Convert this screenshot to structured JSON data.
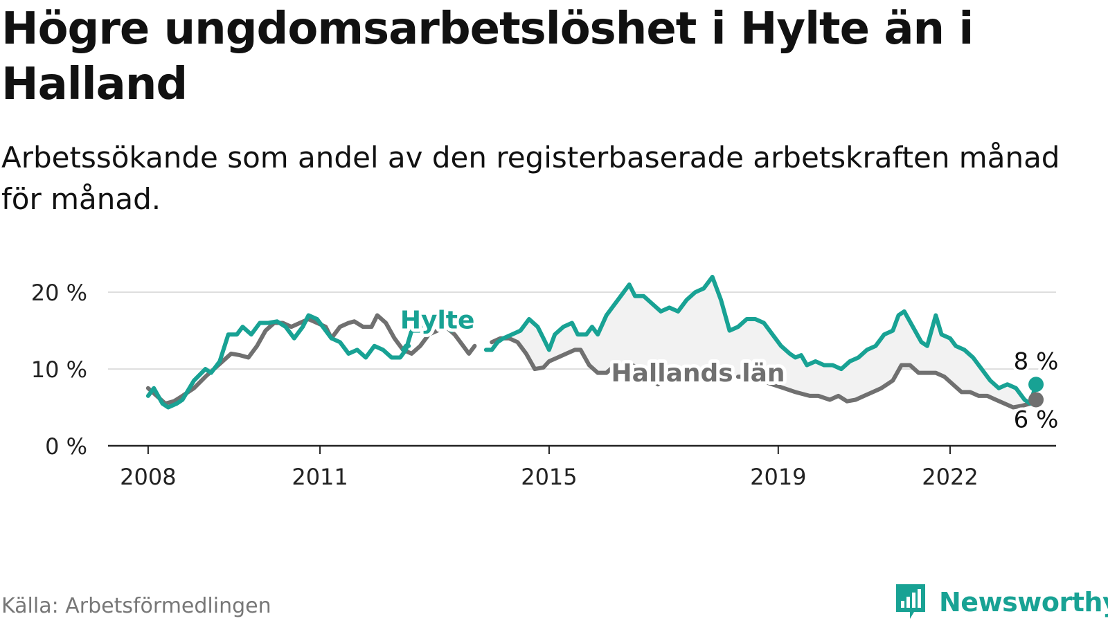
{
  "title": "Högre ungdomsarbetslöshet i Hylte än i Halland",
  "subtitle": "Arbetssökande som andel av den registerbaserade arbetskraften månad för månad.",
  "source": "Källa: Arbetsförmedlingen",
  "brand": "Newsworthy",
  "colors": {
    "hylte": "#18a294",
    "halland": "#707070",
    "grid": "#dddddd",
    "axis": "#222222",
    "fill": "#f2f2f2"
  },
  "chart_data": {
    "type": "line",
    "title": "Högre ungdomsarbetslöshet i Hylte än i Halland",
    "xlabel": "",
    "ylabel": "",
    "ylim": [
      0,
      22
    ],
    "xlim": [
      2007.3,
      2023.85
    ],
    "y_ticks": [
      0,
      10,
      20
    ],
    "y_tick_labels": [
      "0 %",
      "10 %",
      "20 %"
    ],
    "x_ticks": [
      2008,
      2011,
      2015,
      2019,
      2022
    ],
    "x_tick_labels": [
      "2008",
      "2011",
      "2015",
      "2019",
      "2022"
    ],
    "grid": true,
    "series": [
      {
        "name": "Hylte",
        "points": [
          [
            2008.0,
            6.5
          ],
          [
            2008.1,
            7.5
          ],
          [
            2008.25,
            5.5
          ],
          [
            2008.35,
            5.0
          ],
          [
            2008.5,
            5.5
          ],
          [
            2008.6,
            6.0
          ],
          [
            2008.8,
            8.5
          ],
          [
            2009.0,
            10.0
          ],
          [
            2009.1,
            9.5
          ],
          [
            2009.25,
            11.0
          ],
          [
            2009.4,
            14.5
          ],
          [
            2009.55,
            14.5
          ],
          [
            2009.65,
            15.5
          ],
          [
            2009.8,
            14.5
          ],
          [
            2009.95,
            16.0
          ],
          [
            2010.1,
            16.0
          ],
          [
            2010.25,
            16.2
          ],
          [
            2010.4,
            15.5
          ],
          [
            2010.55,
            14.0
          ],
          [
            2010.7,
            15.5
          ],
          [
            2010.8,
            17.0
          ],
          [
            2010.95,
            16.5
          ],
          [
            2011.05,
            15.5
          ],
          [
            2011.2,
            14.0
          ],
          [
            2011.35,
            13.5
          ],
          [
            2011.5,
            12.0
          ],
          [
            2011.65,
            12.5
          ],
          [
            2011.8,
            11.5
          ],
          [
            2011.95,
            13.0
          ],
          [
            2012.1,
            12.5
          ],
          [
            2012.25,
            11.5
          ],
          [
            2012.4,
            11.5
          ],
          [
            2012.5,
            12.5
          ],
          [
            2012.6,
            15.0
          ],
          [
            2012.75,
            15.0
          ],
          [
            2012.9,
            16.5
          ],
          [
            2013.05,
            16.0
          ],
          [
            2013.2,
            15.5
          ],
          [
            2013.3,
            15.0
          ]
        ]
      },
      {
        "name": "Hylte",
        "points": [
          [
            2012.45,
            12.5
          ],
          [
            2012.5,
            13.0
          ],
          [
            2012.55,
            13.0
          ]
        ]
      },
      {
        "name": "Hylte",
        "points": [
          [
            2013.9,
            12.5
          ],
          [
            2014.0,
            12.5
          ],
          [
            2014.1,
            13.5
          ],
          [
            2014.2,
            14.0
          ],
          [
            2014.35,
            14.5
          ],
          [
            2014.5,
            15.0
          ],
          [
            2014.65,
            16.5
          ],
          [
            2014.8,
            15.5
          ],
          [
            2014.9,
            14.0
          ],
          [
            2015.0,
            12.5
          ],
          [
            2015.1,
            14.5
          ],
          [
            2015.25,
            15.5
          ],
          [
            2015.4,
            16.0
          ],
          [
            2015.5,
            14.5
          ],
          [
            2015.65,
            14.5
          ],
          [
            2015.75,
            15.5
          ],
          [
            2015.85,
            14.5
          ],
          [
            2016.0,
            17.0
          ],
          [
            2016.15,
            18.5
          ],
          [
            2016.3,
            20.0
          ],
          [
            2016.4,
            21.0
          ],
          [
            2016.5,
            19.5
          ],
          [
            2016.65,
            19.5
          ],
          [
            2016.8,
            18.5
          ],
          [
            2016.95,
            17.5
          ],
          [
            2017.1,
            18.0
          ],
          [
            2017.25,
            17.5
          ],
          [
            2017.4,
            19.0
          ],
          [
            2017.55,
            20.0
          ],
          [
            2017.7,
            20.5
          ],
          [
            2017.85,
            22.0
          ],
          [
            2018.0,
            19.0
          ],
          [
            2018.15,
            15.0
          ],
          [
            2018.3,
            15.5
          ],
          [
            2018.45,
            16.5
          ],
          [
            2018.6,
            16.5
          ],
          [
            2018.75,
            16.0
          ],
          [
            2018.9,
            14.5
          ],
          [
            2019.05,
            13.0
          ],
          [
            2019.2,
            12.0
          ],
          [
            2019.3,
            11.5
          ],
          [
            2019.4,
            11.8
          ],
          [
            2019.5,
            10.5
          ],
          [
            2019.65,
            11.0
          ],
          [
            2019.8,
            10.5
          ],
          [
            2019.95,
            10.5
          ],
          [
            2020.1,
            10.0
          ],
          [
            2020.25,
            11.0
          ],
          [
            2020.4,
            11.5
          ],
          [
            2020.55,
            12.5
          ],
          [
            2020.7,
            13.0
          ],
          [
            2020.85,
            14.5
          ],
          [
            2021.0,
            15.0
          ],
          [
            2021.1,
            17.0
          ],
          [
            2021.2,
            17.5
          ],
          [
            2021.35,
            15.5
          ],
          [
            2021.5,
            13.5
          ],
          [
            2021.6,
            13.0
          ],
          [
            2021.75,
            17.0
          ],
          [
            2021.85,
            14.5
          ],
          [
            2022.0,
            14.0
          ],
          [
            2022.1,
            13.0
          ],
          [
            2022.25,
            12.5
          ],
          [
            2022.4,
            11.5
          ],
          [
            2022.55,
            10.0
          ],
          [
            2022.7,
            8.5
          ],
          [
            2022.85,
            7.5
          ],
          [
            2023.0,
            8.0
          ],
          [
            2023.15,
            7.5
          ],
          [
            2023.3,
            6.0
          ],
          [
            2023.4,
            5.5
          ],
          [
            2023.5,
            8.0
          ]
        ]
      },
      {
        "name": "Hallands län",
        "points": [
          [
            2008.0,
            7.5
          ],
          [
            2008.15,
            6.5
          ],
          [
            2008.3,
            5.5
          ],
          [
            2008.45,
            5.8
          ],
          [
            2008.6,
            6.5
          ],
          [
            2008.8,
            7.5
          ],
          [
            2009.0,
            9.0
          ],
          [
            2009.15,
            10.0
          ],
          [
            2009.3,
            11.0
          ],
          [
            2009.45,
            12.0
          ],
          [
            2009.6,
            11.8
          ],
          [
            2009.75,
            11.5
          ],
          [
            2009.9,
            13.0
          ],
          [
            2010.05,
            15.0
          ],
          [
            2010.2,
            16.0
          ],
          [
            2010.35,
            16.0
          ],
          [
            2010.5,
            15.5
          ],
          [
            2010.65,
            16.0
          ],
          [
            2010.8,
            16.5
          ],
          [
            2010.95,
            16.0
          ],
          [
            2011.1,
            15.5
          ],
          [
            2011.2,
            14.0
          ],
          [
            2011.35,
            15.5
          ],
          [
            2011.5,
            16.0
          ],
          [
            2011.6,
            16.2
          ],
          [
            2011.75,
            15.5
          ],
          [
            2011.9,
            15.5
          ],
          [
            2012.0,
            17.0
          ],
          [
            2012.15,
            16.0
          ],
          [
            2012.3,
            14.0
          ],
          [
            2012.45,
            12.5
          ],
          [
            2012.6,
            12.0
          ],
          [
            2012.75,
            13.0
          ],
          [
            2012.9,
            14.5
          ],
          [
            2013.05,
            15.0
          ],
          [
            2013.2,
            15.5
          ],
          [
            2013.35,
            14.5
          ],
          [
            2013.5,
            13.0
          ],
          [
            2013.6,
            12.0
          ],
          [
            2013.7,
            13.0
          ]
        ]
      },
      {
        "name": "Hallands län",
        "points": [
          [
            2014.0,
            13.5
          ],
          [
            2014.15,
            14.0
          ],
          [
            2014.3,
            14.0
          ],
          [
            2014.45,
            13.5
          ],
          [
            2014.6,
            12.0
          ],
          [
            2014.75,
            10.0
          ],
          [
            2014.9,
            10.2
          ],
          [
            2015.0,
            11.0
          ],
          [
            2015.15,
            11.5
          ],
          [
            2015.3,
            12.0
          ],
          [
            2015.45,
            12.5
          ],
          [
            2015.55,
            12.5
          ],
          [
            2015.7,
            10.5
          ],
          [
            2015.85,
            9.5
          ],
          [
            2016.0,
            9.5
          ],
          [
            2016.15,
            10.5
          ],
          [
            2016.3,
            10.5
          ],
          [
            2016.45,
            10.5
          ],
          [
            2016.6,
            10.0
          ],
          [
            2016.75,
            9.0
          ],
          [
            2016.9,
            8.0
          ]
        ]
      },
      {
        "name": "Hallands län",
        "points": [
          [
            2018.3,
            9.0
          ],
          [
            2018.5,
            9.0
          ],
          [
            2018.7,
            8.5
          ],
          [
            2018.9,
            8.0
          ],
          [
            2019.1,
            7.5
          ],
          [
            2019.3,
            7.0
          ],
          [
            2019.55,
            6.5
          ],
          [
            2019.7,
            6.5
          ],
          [
            2019.9,
            6.0
          ],
          [
            2020.05,
            6.5
          ],
          [
            2020.2,
            5.8
          ],
          [
            2020.35,
            6.0
          ],
          [
            2020.5,
            6.5
          ],
          [
            2020.65,
            7.0
          ],
          [
            2020.8,
            7.5
          ],
          [
            2020.9,
            8.0
          ],
          [
            2021.0,
            8.5
          ],
          [
            2021.15,
            10.5
          ],
          [
            2021.3,
            10.5
          ],
          [
            2021.45,
            9.5
          ],
          [
            2021.6,
            9.5
          ],
          [
            2021.75,
            9.5
          ],
          [
            2021.9,
            9.0
          ],
          [
            2022.05,
            8.0
          ],
          [
            2022.2,
            7.0
          ],
          [
            2022.35,
            7.0
          ],
          [
            2022.5,
            6.5
          ],
          [
            2022.65,
            6.5
          ],
          [
            2022.8,
            6.0
          ],
          [
            2022.95,
            5.5
          ],
          [
            2023.1,
            5.0
          ],
          [
            2023.25,
            5.2
          ],
          [
            2023.4,
            5.5
          ],
          [
            2023.5,
            6.0
          ]
        ]
      }
    ],
    "series_labels": [
      {
        "name": "Hylte",
        "text": "Hylte",
        "x": 2013.05,
        "y": 15.3,
        "color_key": "hylte"
      },
      {
        "name": "Hallands län",
        "text": "Hallands län",
        "x": 2017.6,
        "y": 8.4,
        "color_key": "halland"
      }
    ],
    "end_values": [
      {
        "name": "Hylte",
        "x": 2023.5,
        "y": 8.0,
        "text": "8 %",
        "color_key": "hylte"
      },
      {
        "name": "Hallands län",
        "x": 2023.5,
        "y": 6.0,
        "text": "6 %",
        "color_key": "halland"
      }
    ]
  }
}
